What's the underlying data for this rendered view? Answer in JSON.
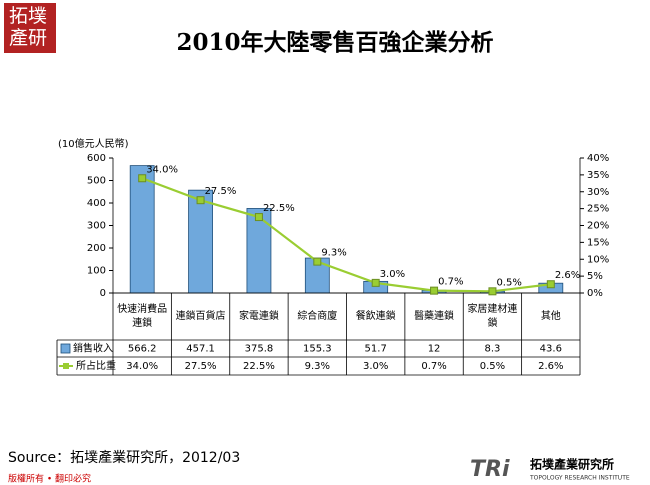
{
  "header": {
    "logo": "拓墣產研"
  },
  "chart_data": {
    "type": "bar-line",
    "title": "2010年大陸零售百強企業分析",
    "y_label": "(10億元人民幣)",
    "categories": [
      "快速消費品連鎖",
      "連鎖百貨店",
      "家電連鎖",
      "綜合商廈",
      "餐飲連鎖",
      "醫藥連鎖",
      "家居建材連鎖",
      "其他"
    ],
    "series": [
      {
        "name": "銷售收入",
        "type": "bar",
        "color": "#6fa8dc",
        "values": [
          566.2,
          457.1,
          375.8,
          155.3,
          51.7,
          12,
          8.3,
          43.6
        ]
      },
      {
        "name": "所占比重",
        "type": "line",
        "axis": "y2",
        "color": "#9acd32",
        "values": [
          34.0,
          27.5,
          22.5,
          9.3,
          3.0,
          0.7,
          0.5,
          2.6
        ],
        "value_labels": [
          "34.0%",
          "27.5%",
          "22.5%",
          "9.3%",
          "3.0%",
          "0.7%",
          "0.5%",
          "2.6%"
        ]
      }
    ],
    "ylim": [
      0,
      600
    ],
    "yticks": [
      0,
      100,
      200,
      300,
      400,
      500,
      600
    ],
    "y2lim": [
      0,
      40
    ],
    "y2ticks": [
      {
        "value": 0,
        "label": "0%"
      },
      {
        "value": 5,
        "label": "5%"
      },
      {
        "value": 10,
        "label": "10%"
      },
      {
        "value": 15,
        "label": "15%"
      },
      {
        "value": 20,
        "label": "20%"
      },
      {
        "value": 25,
        "label": "25%"
      },
      {
        "value": 30,
        "label": "30%"
      },
      {
        "value": 35,
        "label": "35%"
      },
      {
        "value": 40,
        "label": "40%"
      }
    ],
    "data_table": true
  },
  "footer": {
    "source": "Source：拓墣產業研究所，2012/03",
    "copyright": "版權所有 • 翻印必究",
    "logo_mark": "TRi",
    "logo_name": "拓墣產業研究所",
    "logo_sub": "TOPOLOGY RESEARCH INSTITUTE"
  }
}
